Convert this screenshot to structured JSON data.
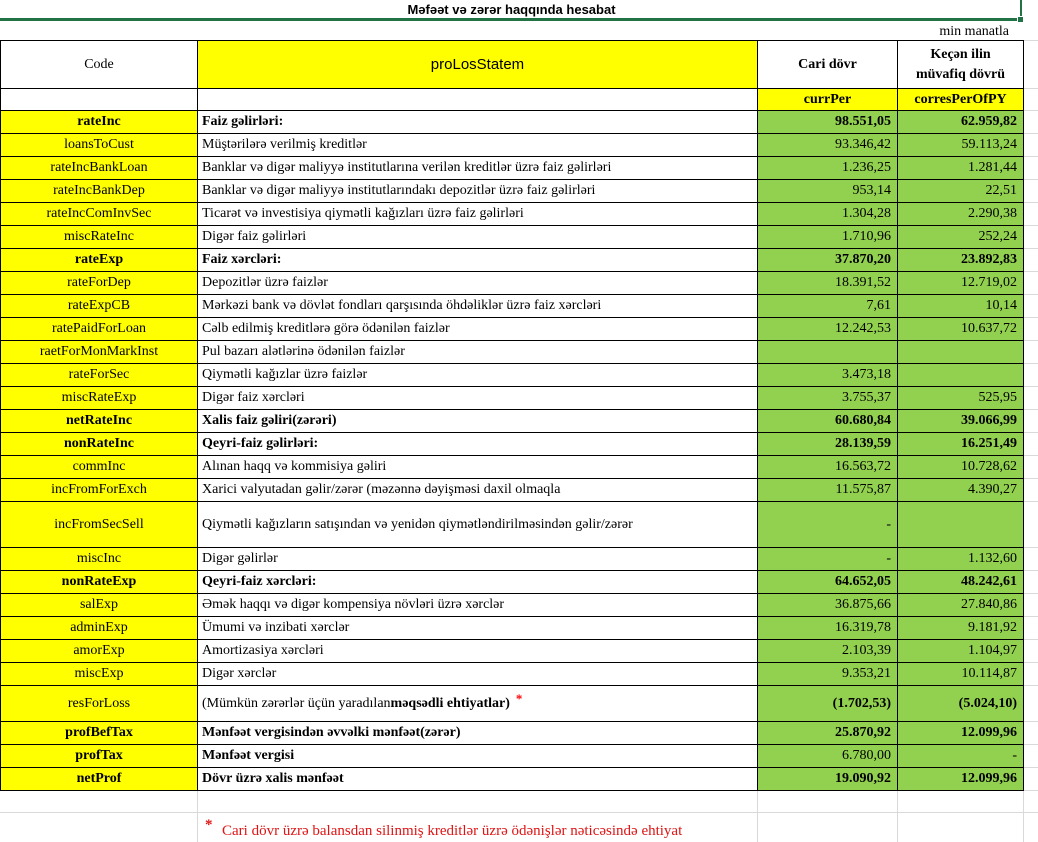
{
  "title": "Məfəət və zərər haqqında hesabat",
  "unit_note": "min manatla",
  "colors": {
    "yellow": "#FFFF00",
    "green": "#92D050",
    "selection_green": "#217346",
    "gridline_gray": "#D9D9D9",
    "asterisk_red": "#FF0000",
    "footnote_red": "#DF1414"
  },
  "header": {
    "code": "Code",
    "statement": "proLosStatem",
    "current_period": "Cari dövr",
    "previous_period": "Keçən ilin müvafiq dövrü",
    "current_code": "currPer",
    "previous_code": "corresPerOfPY"
  },
  "footnote": {
    "asterisk": "*",
    "text": "Cari dövr üzrə balansdan silinmiş kreditlər üzrə ödənişlər nəticəsində ehtiyat"
  },
  "rows": [
    {
      "code": "rateInc",
      "label": "Faiz gəlirləri:",
      "curr": "98.551,05",
      "prev": "62.959,82",
      "bold": true
    },
    {
      "code": "loansToCust",
      "label": "Müştərilərə verilmiş kreditlər",
      "curr": "93.346,42",
      "prev": "59.113,24",
      "bold": false
    },
    {
      "code": "rateIncBankLoan",
      "label": "Banklar və digər maliyyə institutlarına verilən kreditlər üzrə faiz gəlirləri",
      "curr": "1.236,25",
      "prev": "1.281,44",
      "bold": false
    },
    {
      "code": "rateIncBankDep",
      "label": "Banklar və digər maliyyə institutlarındakı depozitlər üzrə faiz gəlirləri",
      "curr": "953,14",
      "prev": "22,51",
      "bold": false
    },
    {
      "code": "rateIncComInvSec",
      "label": "Ticarət və investisiya qiymətli kağızları üzrə faiz gəlirləri",
      "curr": "1.304,28",
      "prev": "2.290,38",
      "bold": false
    },
    {
      "code": "miscRateInc",
      "label": "Digər faiz gəlirləri",
      "curr": "1.710,96",
      "prev": "252,24",
      "bold": false
    },
    {
      "code": "rateExp",
      "label": "Faiz xərcləri:",
      "curr": "37.870,20",
      "prev": "23.892,83",
      "bold": true
    },
    {
      "code": "rateForDep",
      "label": "Depozitlər üzrə faizlər",
      "curr": "18.391,52",
      "prev": "12.719,02",
      "bold": false
    },
    {
      "code": "rateExpCB",
      "label": "Mərkəzi bank və dövlət fondları qarşısında öhdəliklər üzrə faiz xərcləri",
      "curr": "7,61",
      "prev": "10,14",
      "bold": false
    },
    {
      "code": "ratePaidForLoan",
      "label": "Cəlb edilmiş kreditlərə görə ödənilən faizlər",
      "curr": "12.242,53",
      "prev": "10.637,72",
      "bold": false
    },
    {
      "code": "raetForMonMarkInst",
      "label": "Pul bazarı alətlərinə ödənilən faizlər",
      "curr": "",
      "prev": "",
      "bold": false
    },
    {
      "code": "rateForSec",
      "label": "Qiymətli kağızlar üzrə faizlər",
      "curr": "3.473,18",
      "prev": "",
      "bold": false
    },
    {
      "code": "miscRateExp",
      "label": "Digər faiz xərcləri",
      "curr": "3.755,37",
      "prev": "525,95",
      "bold": false
    },
    {
      "code": "netRateInc",
      "label": "Xalis faiz gəliri(zərəri)",
      "curr": "60.680,84",
      "prev": "39.066,99",
      "bold": true
    },
    {
      "code": "nonRateInc",
      "label": "Qeyri-faiz gəlirləri:",
      "curr": "28.139,59",
      "prev": "16.251,49",
      "bold": true
    },
    {
      "code": "commInc",
      "label": "Alınan haqq və kommisiya gəliri",
      "curr": "16.563,72",
      "prev": "10.728,62",
      "bold": false
    },
    {
      "code": "incFromForExch",
      "label": "Xarici valyutadan gəlir/zərər (məzənnə dəyişməsi daxil olmaqla",
      "curr": "11.575,87",
      "prev": "4.390,27",
      "bold": false
    },
    {
      "code": "incFromSecSell",
      "label": "Qiymətli kağızların satışından və yenidən qiymətləndirilməsindən gəlir/zərər",
      "curr": "-",
      "prev": "",
      "bold": false,
      "h": 46
    },
    {
      "code": "miscInc",
      "label": "Digər gəlirlər",
      "curr": "-",
      "prev": "1.132,60",
      "bold": false
    },
    {
      "code": "nonRateExp",
      "label": "Qeyri-faiz xərcləri:",
      "curr": "64.652,05",
      "prev": "48.242,61",
      "bold": true
    },
    {
      "code": "salExp",
      "label": "Əmək haqqı və digər kompensiya növləri üzrə xərclər",
      "curr": "36.875,66",
      "prev": "27.840,86",
      "bold": false
    },
    {
      "code": "adminExp",
      "label": "Ümumi və inzibati xərclər",
      "curr": "16.319,78",
      "prev": "9.181,92",
      "bold": false
    },
    {
      "code": "amorExp",
      "label": "Amortizasiya xərcləri",
      "curr": "2.103,39",
      "prev": "1.104,97",
      "bold": false
    },
    {
      "code": "miscExp",
      "label": "Digər xərclər",
      "curr": "9.353,21",
      "prev": "10.114,87",
      "bold": false
    },
    {
      "code": "resForLoss",
      "label": "(Mümkün zərərlər üçün yaradılan ",
      "label_bold": "məqsədli ehtiyatlar)",
      "asterisk": "*",
      "curr": "(1.702,53)",
      "prev": "(5.024,10)",
      "bold": false,
      "values_bold": true,
      "h": 36
    },
    {
      "code": "profBefTax",
      "label": "Mənfəət vergisindən əvvəlki mənfəət(zərər)",
      "curr": "25.870,92",
      "prev": "12.099,96",
      "bold": true
    },
    {
      "code": "profTax",
      "label": "Mənfəət vergisi",
      "curr": "6.780,00",
      "prev": "-",
      "bold": true,
      "values_bold": false
    },
    {
      "code": "netProf",
      "label": "Dövr üzrə xalis mənfəət",
      "curr": "19.090,92",
      "prev": "12.099,96",
      "bold": true
    }
  ]
}
